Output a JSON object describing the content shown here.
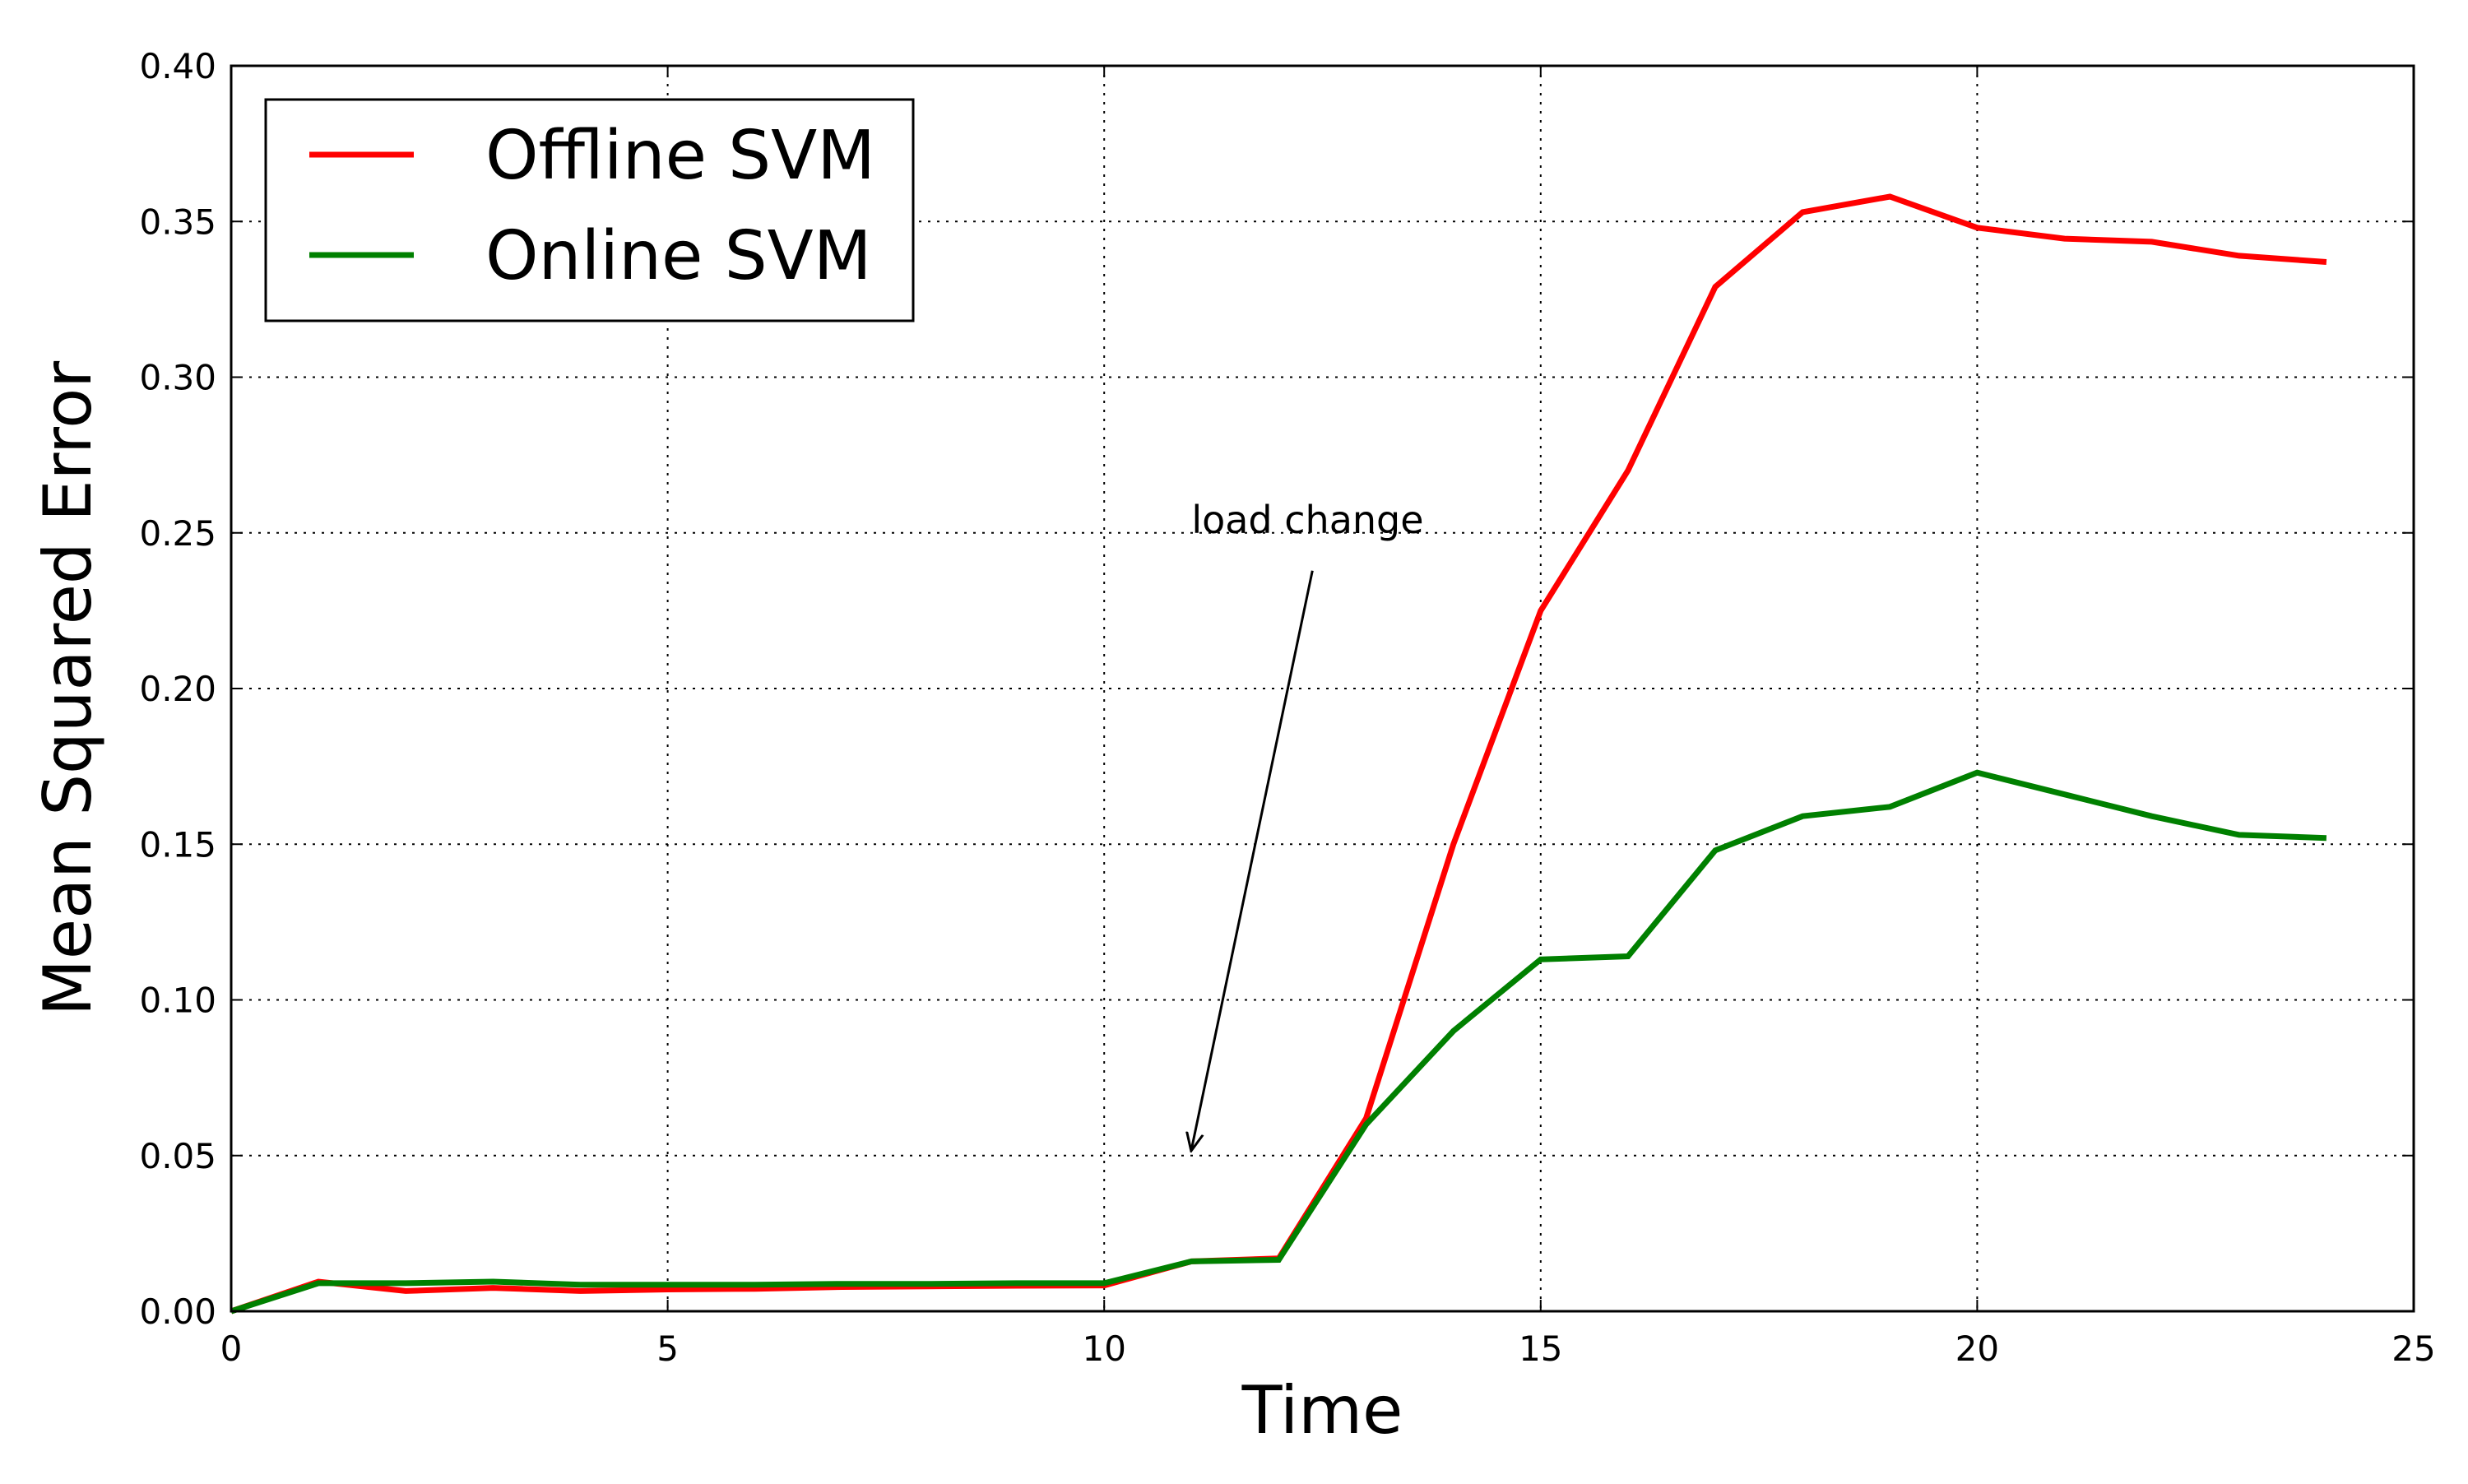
{
  "chart_data": {
    "type": "line",
    "xlabel": "Time",
    "ylabel": "Mean Squared Error",
    "xlim": [
      0,
      25
    ],
    "ylim": [
      0,
      0.4
    ],
    "xticks": [
      "0",
      "5",
      "10",
      "15",
      "20",
      "25"
    ],
    "yticks": [
      "0.00",
      "0.05",
      "0.10",
      "0.15",
      "0.20",
      "0.25",
      "0.30",
      "0.35",
      "0.40"
    ],
    "grid": true,
    "grid_style": "dotted",
    "legend_position": "upper-left",
    "series": [
      {
        "name": "Offline SVM",
        "color": "#ff0000",
        "x": [
          0,
          1,
          2,
          3,
          4,
          5,
          6,
          7,
          8,
          9,
          10,
          11,
          12,
          13,
          14,
          15,
          16,
          17,
          18,
          19,
          20,
          21,
          22,
          23,
          24
        ],
        "y": [
          0.0,
          0.0095,
          0.0065,
          0.0075,
          0.0065,
          0.007,
          0.0072,
          0.0078,
          0.008,
          0.0082,
          0.0083,
          0.016,
          0.017,
          0.062,
          0.15,
          0.225,
          0.27,
          0.329,
          0.353,
          0.358,
          0.348,
          0.3445,
          0.3435,
          0.339,
          0.337
        ]
      },
      {
        "name": "Online SVM",
        "color": "#008000",
        "x": [
          0,
          1,
          2,
          3,
          4,
          5,
          6,
          7,
          8,
          9,
          10,
          11,
          12,
          13,
          14,
          15,
          16,
          17,
          18,
          19,
          20,
          21,
          22,
          23,
          24
        ],
        "y": [
          0.0,
          0.009,
          0.009,
          0.0095,
          0.0085,
          0.0085,
          0.0085,
          0.0088,
          0.0088,
          0.009,
          0.009,
          0.016,
          0.0165,
          0.06,
          0.09,
          0.113,
          0.114,
          0.148,
          0.159,
          0.162,
          0.173,
          0.166,
          0.159,
          0.153,
          0.152
        ]
      }
    ],
    "annotations": [
      {
        "text": "load change",
        "text_x": 11.0,
        "text_y": 0.25,
        "arrow_to_x": 11.0,
        "arrow_to_y": 0.052
      }
    ]
  }
}
